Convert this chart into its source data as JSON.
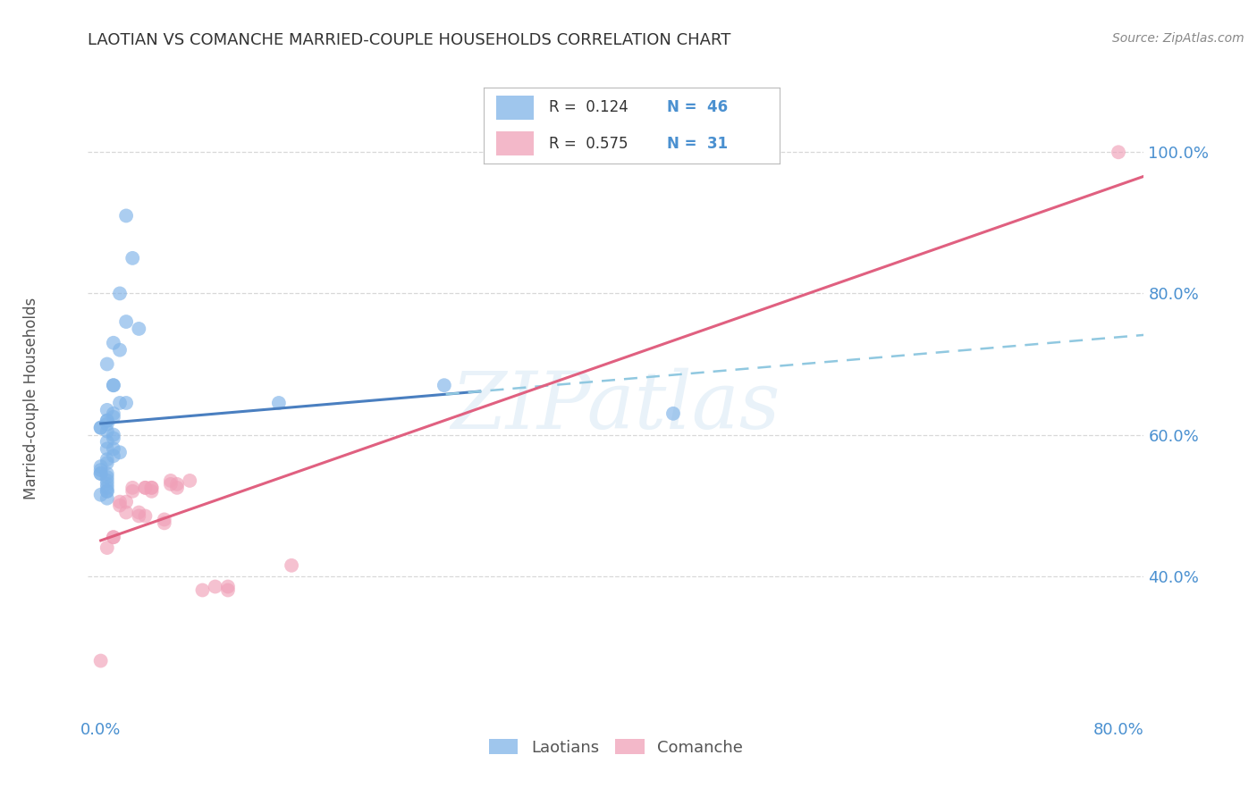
{
  "title": "LAOTIAN VS COMANCHE MARRIED-COUPLE HOUSEHOLDS CORRELATION CHART",
  "source": "Source: ZipAtlas.com",
  "ylabel": "Married-couple Households",
  "xlim": [
    -0.01,
    0.82
  ],
  "ylim": [
    0.2,
    1.08
  ],
  "y_ticks": [
    0.4,
    0.6,
    0.8,
    1.0
  ],
  "y_tick_labels": [
    "40.0%",
    "60.0%",
    "80.0%",
    "100.0%"
  ],
  "laotian_x": [
    0.02,
    0.025,
    0.015,
    0.02,
    0.03,
    0.01,
    0.015,
    0.005,
    0.01,
    0.01,
    0.015,
    0.02,
    0.005,
    0.01,
    0.01,
    0.005,
    0.005,
    0.005,
    0.0,
    0.0,
    0.005,
    0.01,
    0.01,
    0.005,
    0.005,
    0.01,
    0.015,
    0.01,
    0.005,
    0.005,
    0.0,
    0.0,
    0.0,
    0.0,
    0.005,
    0.005,
    0.005,
    0.005,
    0.005,
    0.005,
    0.005,
    0.0,
    0.005,
    0.14,
    0.27,
    0.45
  ],
  "laotian_y": [
    0.91,
    0.85,
    0.8,
    0.76,
    0.75,
    0.73,
    0.72,
    0.7,
    0.67,
    0.67,
    0.645,
    0.645,
    0.635,
    0.63,
    0.625,
    0.62,
    0.62,
    0.615,
    0.61,
    0.61,
    0.605,
    0.6,
    0.595,
    0.59,
    0.58,
    0.58,
    0.575,
    0.57,
    0.565,
    0.56,
    0.555,
    0.55,
    0.545,
    0.545,
    0.545,
    0.54,
    0.535,
    0.53,
    0.525,
    0.52,
    0.52,
    0.515,
    0.51,
    0.645,
    0.67,
    0.63
  ],
  "comanche_x": [
    0.0,
    0.005,
    0.01,
    0.01,
    0.015,
    0.015,
    0.02,
    0.02,
    0.025,
    0.025,
    0.03,
    0.03,
    0.035,
    0.035,
    0.035,
    0.04,
    0.04,
    0.04,
    0.05,
    0.05,
    0.055,
    0.055,
    0.06,
    0.06,
    0.07,
    0.08,
    0.09,
    0.1,
    0.1,
    0.15,
    0.8
  ],
  "comanche_y": [
    0.28,
    0.44,
    0.455,
    0.455,
    0.5,
    0.505,
    0.49,
    0.505,
    0.52,
    0.525,
    0.485,
    0.49,
    0.525,
    0.525,
    0.485,
    0.52,
    0.525,
    0.525,
    0.475,
    0.48,
    0.53,
    0.535,
    0.525,
    0.53,
    0.535,
    0.38,
    0.385,
    0.38,
    0.385,
    0.415,
    1.0
  ],
  "laotian_color": "#7fb3e8",
  "comanche_color": "#f0a0b8",
  "laotian_trend_color": "#4a7fc0",
  "comanche_trend_color": "#e06080",
  "laotian_dash_color": "#90c8e0",
  "watermark_text": "ZIPatlas",
  "background_color": "#ffffff",
  "grid_color": "#d8d8d8",
  "title_color": "#333333",
  "axis_tick_color": "#4a90d0",
  "ylabel_color": "#555555",
  "source_color": "#888888"
}
